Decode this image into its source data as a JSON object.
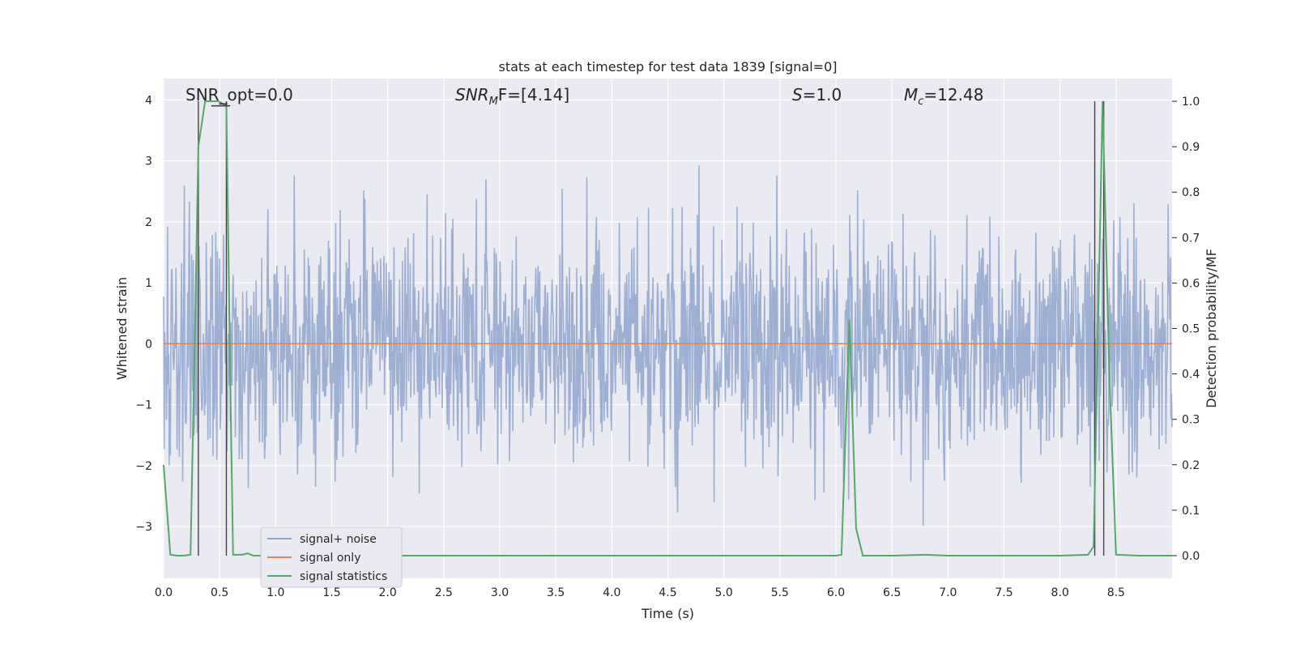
{
  "chart_data": {
    "type": "line",
    "title": "stats at each timestep for test data 1839 [signal=0]",
    "xlabel": "Time (s)",
    "ylabel": "Whitened strain",
    "y2label": "Detection probability/MF",
    "xlim": [
      0.0,
      9.0
    ],
    "ylim": [
      -3.85,
      4.35
    ],
    "y2lim": [
      -0.05,
      1.05
    ],
    "xticks": [
      "0.0",
      "0.5",
      "1.0",
      "1.5",
      "2.0",
      "2.5",
      "3.0",
      "3.5",
      "4.0",
      "4.5",
      "5.0",
      "5.5",
      "6.0",
      "6.5",
      "7.0",
      "7.5",
      "8.0",
      "8.5"
    ],
    "yticks": [
      "−3",
      "−2",
      "−1",
      "0",
      "1",
      "2",
      "3",
      "4"
    ],
    "y2ticks": [
      "0.0",
      "0.1",
      "0.2",
      "0.3",
      "0.4",
      "0.5",
      "0.6",
      "0.7",
      "0.8",
      "0.9",
      "1.0"
    ],
    "grid": true,
    "legend_position": "lower-left",
    "annotations": {
      "snr_opt": "SNR_opt=0.0",
      "snr_mf_prefix": "SNR",
      "snr_mf_sub": "M",
      "snr_mf_suffix": "F=[4.14]",
      "s_prefix": "S",
      "s_suffix": "=1.0",
      "mc_prefix": "M",
      "mc_sub": "c",
      "mc_suffix": "=12.48"
    },
    "series": [
      {
        "name": "signal+ noise",
        "color": "#8fa4cd",
        "description": "whitened strain noise trace, amplitude roughly within [-3.6, 3.6]",
        "envelope": [
          2.0,
          -2.6
        ]
      },
      {
        "name": "signal only",
        "color": "#dd8452",
        "y_constant": 0.0
      },
      {
        "name": "signal statistics",
        "color": "#55a868",
        "axis": "right",
        "x": [
          0.0,
          0.06,
          0.12,
          0.18,
          0.24,
          0.28,
          0.31,
          0.37,
          0.43,
          0.49,
          0.56,
          0.6,
          0.62,
          0.7,
          0.75,
          0.8,
          0.9,
          1.5,
          2.0,
          2.5,
          3.0,
          3.5,
          4.0,
          4.5,
          5.0,
          5.5,
          6.0,
          6.05,
          6.12,
          6.18,
          6.24,
          6.5,
          6.8,
          7.0,
          7.5,
          8.0,
          8.25,
          8.3,
          8.38,
          8.44,
          8.5,
          8.7,
          9.0
        ],
        "y": [
          0.2,
          0.002,
          0.0,
          0.0,
          0.002,
          0.5,
          0.9,
          1.0,
          1.0,
          1.0,
          0.99,
          0.3,
          0.002,
          0.002,
          0.005,
          0.0,
          0.0,
          0.0,
          0.0,
          0.0,
          0.0,
          0.0,
          0.0,
          0.0,
          0.0,
          0.0,
          0.0,
          0.002,
          0.52,
          0.06,
          0.0,
          0.0,
          0.002,
          0.0,
          0.0,
          0.0,
          0.002,
          0.02,
          1.0,
          0.4,
          0.002,
          0.0,
          0.0
        ]
      }
    ],
    "vertical_markers": [
      {
        "x": 0.31,
        "y_top": 1.0
      },
      {
        "x": 0.56,
        "y_top": 1.0
      },
      {
        "x": 8.31,
        "y_top": 1.0
      },
      {
        "x": 8.39,
        "y_top": 1.0
      }
    ],
    "mf_markers": [
      {
        "x": 0.47,
        "y": 0.99
      },
      {
        "x": 0.55,
        "y": 0.99
      }
    ]
  }
}
